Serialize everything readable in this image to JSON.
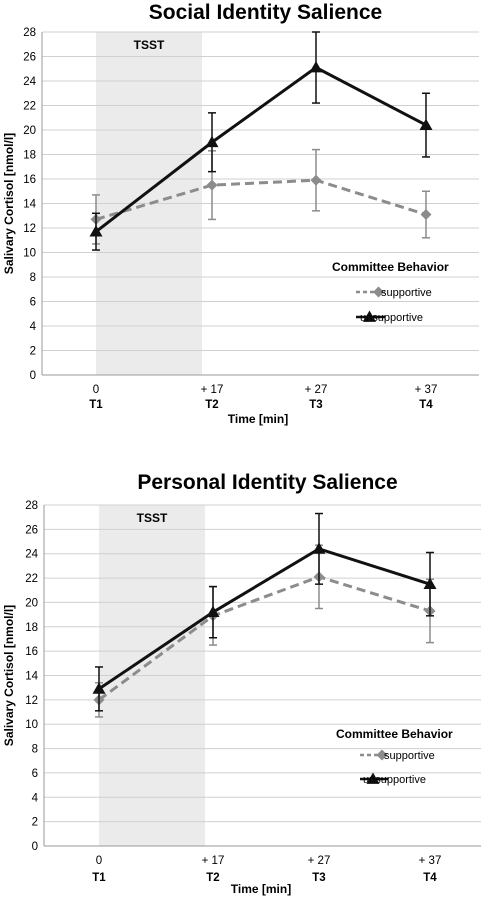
{
  "chart_data": [
    {
      "type": "line",
      "title": "Social Identity Salience",
      "xlabel": "Time [min]",
      "ylabel": "Salivary Cortisol [nmol/l]",
      "ylim": [
        0,
        28
      ],
      "yticks": [
        0,
        2,
        4,
        6,
        8,
        10,
        12,
        14,
        16,
        18,
        20,
        22,
        24,
        26,
        28
      ],
      "categories": [
        "0",
        "+ 17",
        "+ 27",
        "+ 37"
      ],
      "timepoints": [
        "T1",
        "T2",
        "T3",
        "T4"
      ],
      "shaded_region": {
        "label": "TSST",
        "from": "0",
        "to": "+ 17"
      },
      "grid": true,
      "legend": {
        "title": "Committee Behavior",
        "placement": "right"
      },
      "series": [
        {
          "name": "supportive",
          "color": "#8c8c8c",
          "line": "dashed",
          "marker": "diamond",
          "values": [
            12.7,
            15.5,
            15.9,
            13.1
          ],
          "error": [
            2.0,
            2.8,
            2.5,
            1.9
          ]
        },
        {
          "name": "unsupportive",
          "color": "#111111",
          "line": "solid",
          "marker": "triangle",
          "values": [
            11.7,
            19.0,
            25.1,
            20.4
          ],
          "error": [
            1.5,
            2.4,
            2.9,
            2.6
          ]
        }
      ]
    },
    {
      "type": "line",
      "title": "Personal Identity Salience",
      "xlabel": "Time [min]",
      "ylabel": "Salivary Cortisol [nmol/l]",
      "ylim": [
        0,
        28
      ],
      "yticks": [
        0,
        2,
        4,
        6,
        8,
        10,
        12,
        14,
        16,
        18,
        20,
        22,
        24,
        26,
        28
      ],
      "categories": [
        "0",
        "+ 17",
        "+ 27",
        "+ 37"
      ],
      "timepoints": [
        "T1",
        "T2",
        "T3",
        "T4"
      ],
      "shaded_region": {
        "label": "TSST",
        "from": "0",
        "to": "+ 17"
      },
      "grid": true,
      "legend": {
        "title": "Committee Behavior",
        "placement": "right"
      },
      "series": [
        {
          "name": "supportive",
          "color": "#8c8c8c",
          "line": "dashed",
          "marker": "diamond",
          "values": [
            12.0,
            18.9,
            22.1,
            19.3
          ],
          "error": [
            1.4,
            2.4,
            2.6,
            2.6
          ]
        },
        {
          "name": "unsupportive",
          "color": "#111111",
          "line": "solid",
          "marker": "triangle",
          "values": [
            12.9,
            19.2,
            24.4,
            21.5
          ],
          "error": [
            1.8,
            2.1,
            2.9,
            2.6
          ]
        }
      ]
    }
  ]
}
